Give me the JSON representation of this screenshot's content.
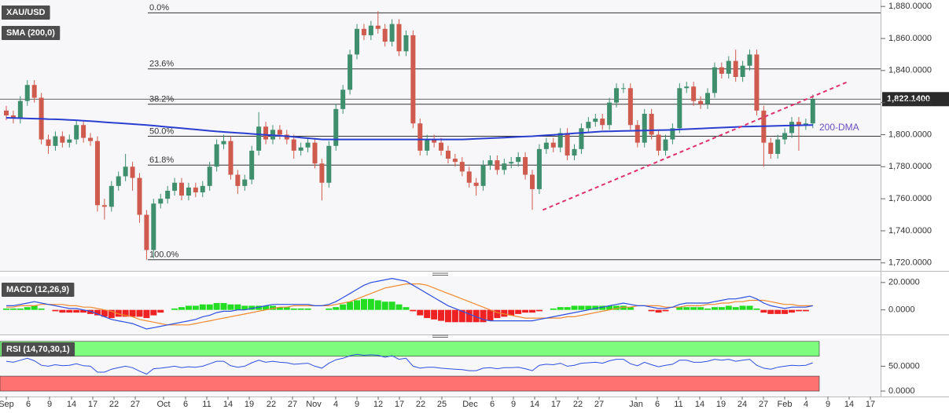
{
  "chart_data": [
    {
      "type": "candlestick",
      "title": "XAU/USD",
      "subtitle": "SMA (200,0)",
      "up_color": "#3f8f6f",
      "down_color": "#cf5a4e",
      "sma_color": "#2a3fd0",
      "ylim": [
        1715,
        1884
      ],
      "yticks": [
        {
          "value": 1880,
          "label": "1,880.0000"
        },
        {
          "value": 1860,
          "label": "1,860.0000"
        },
        {
          "value": 1840,
          "label": "1,840.0000"
        },
        {
          "value": 1820,
          "label": "1,820.0000"
        },
        {
          "value": 1800,
          "label": "1,800.0000"
        },
        {
          "value": 1780,
          "label": "1,780.0000"
        },
        {
          "value": 1760,
          "label": "1,760.0000"
        },
        {
          "value": 1740,
          "label": "1,740.0000"
        },
        {
          "value": 1720,
          "label": "1,720.0000"
        }
      ],
      "open": [
        1815,
        1812,
        1810,
        1821,
        1831,
        1823,
        1797,
        1793,
        1799,
        1795,
        1797,
        1806,
        1798,
        1796,
        1756,
        1755,
        1768,
        1774,
        1780,
        1773,
        1750,
        1728,
        1757,
        1760,
        1765,
        1770,
        1762,
        1767,
        1764,
        1768,
        1780,
        1794,
        1796,
        1775,
        1768,
        1772,
        1790,
        1805,
        1797,
        1803,
        1800,
        1797,
        1790,
        1792,
        1795,
        1782,
        1770,
        1793,
        1816,
        1828,
        1850,
        1866,
        1862,
        1868,
        1866,
        1858,
        1869,
        1852,
        1862,
        1807,
        1790,
        1797,
        1795,
        1790,
        1785,
        1783,
        1777,
        1770,
        1768,
        1781,
        1784,
        1778,
        1782,
        1783,
        1786,
        1775,
        1766,
        1791,
        1795,
        1792,
        1801,
        1787,
        1791,
        1804,
        1808,
        1810,
        1806,
        1820,
        1829,
        1829,
        1806,
        1795,
        1813,
        1800,
        1790,
        1797,
        1804,
        1829,
        1830,
        1821,
        1819,
        1826,
        1842,
        1838,
        1846,
        1836,
        1843,
        1850,
        1815,
        1795,
        1788,
        1797,
        1801,
        1808,
        1806,
        1807
      ],
      "high": [
        1818,
        1815,
        1824,
        1834,
        1834,
        1826,
        1800,
        1802,
        1802,
        1800,
        1809,
        1809,
        1801,
        1799,
        1760,
        1771,
        1777,
        1788,
        1783,
        1776,
        1753,
        1760,
        1763,
        1768,
        1773,
        1773,
        1770,
        1770,
        1771,
        1783,
        1797,
        1800,
        1799,
        1778,
        1775,
        1793,
        1814,
        1808,
        1806,
        1806,
        1803,
        1800,
        1795,
        1798,
        1798,
        1785,
        1796,
        1819,
        1831,
        1853,
        1869,
        1869,
        1871,
        1877,
        1869,
        1872,
        1872,
        1865,
        1865,
        1810,
        1800,
        1800,
        1798,
        1793,
        1788,
        1786,
        1780,
        1773,
        1784,
        1787,
        1787,
        1785,
        1786,
        1789,
        1789,
        1778,
        1794,
        1798,
        1798,
        1804,
        1804,
        1794,
        1807,
        1811,
        1813,
        1813,
        1823,
        1832,
        1832,
        1832,
        1809,
        1816,
        1816,
        1803,
        1800,
        1807,
        1832,
        1833,
        1833,
        1824,
        1829,
        1845,
        1845,
        1849,
        1853,
        1846,
        1853,
        1853,
        1818,
        1798,
        1800,
        1804,
        1811,
        1811,
        1810,
        1825
      ],
      "low": [
        1809,
        1807,
        1807,
        1818,
        1820,
        1794,
        1788,
        1790,
        1792,
        1792,
        1794,
        1795,
        1793,
        1752,
        1747,
        1752,
        1765,
        1771,
        1765,
        1745,
        1722,
        1723,
        1754,
        1757,
        1762,
        1759,
        1759,
        1761,
        1761,
        1765,
        1777,
        1791,
        1772,
        1763,
        1765,
        1769,
        1787,
        1794,
        1794,
        1797,
        1794,
        1785,
        1787,
        1789,
        1779,
        1759,
        1767,
        1790,
        1813,
        1825,
        1847,
        1859,
        1859,
        1863,
        1855,
        1855,
        1849,
        1849,
        1804,
        1787,
        1787,
        1792,
        1787,
        1782,
        1780,
        1774,
        1767,
        1762,
        1765,
        1778,
        1775,
        1775,
        1779,
        1780,
        1772,
        1753,
        1763,
        1788,
        1789,
        1789,
        1784,
        1784,
        1788,
        1801,
        1805,
        1803,
        1803,
        1817,
        1826,
        1803,
        1792,
        1792,
        1797,
        1787,
        1787,
        1794,
        1801,
        1826,
        1818,
        1816,
        1816,
        1823,
        1835,
        1835,
        1833,
        1833,
        1840,
        1812,
        1780,
        1785,
        1785,
        1794,
        1798,
        1790,
        1803,
        1804
      ],
      "close": [
        1812,
        1810,
        1821,
        1831,
        1823,
        1797,
        1793,
        1799,
        1795,
        1797,
        1806,
        1798,
        1796,
        1756,
        1755,
        1768,
        1774,
        1780,
        1773,
        1750,
        1728,
        1757,
        1760,
        1765,
        1770,
        1762,
        1767,
        1764,
        1768,
        1780,
        1794,
        1796,
        1775,
        1768,
        1772,
        1790,
        1805,
        1797,
        1803,
        1800,
        1797,
        1790,
        1792,
        1795,
        1782,
        1770,
        1793,
        1816,
        1828,
        1850,
        1866,
        1862,
        1868,
        1866,
        1858,
        1869,
        1852,
        1862,
        1807,
        1790,
        1797,
        1795,
        1790,
        1785,
        1783,
        1777,
        1770,
        1768,
        1781,
        1784,
        1778,
        1782,
        1783,
        1786,
        1775,
        1766,
        1791,
        1795,
        1792,
        1801,
        1787,
        1791,
        1804,
        1808,
        1810,
        1806,
        1820,
        1829,
        1829,
        1806,
        1795,
        1813,
        1800,
        1790,
        1797,
        1804,
        1829,
        1830,
        1821,
        1819,
        1826,
        1842,
        1838,
        1846,
        1836,
        1843,
        1850,
        1815,
        1795,
        1788,
        1797,
        1801,
        1808,
        1806,
        1807,
        1822
      ],
      "sma": [
        1810.5,
        1810.4,
        1810.3,
        1810.1,
        1810,
        1809.9,
        1809.7,
        1809.6,
        1809.4,
        1809.2,
        1809,
        1808.7,
        1808.4,
        1808.1,
        1807.8,
        1807.5,
        1807.2,
        1806.9,
        1806.6,
        1806.3,
        1806,
        1805.6,
        1805.2,
        1804.8,
        1804.4,
        1804,
        1803.6,
        1803.2,
        1802.8,
        1802.4,
        1802,
        1801.7,
        1801.4,
        1801.1,
        1800.8,
        1800.5,
        1800.2,
        1799.9,
        1799.6,
        1799.3,
        1799,
        1798.6,
        1798.2,
        1797.8,
        1797.4,
        1797,
        1797,
        1797,
        1797,
        1797,
        1797,
        1797,
        1797,
        1797,
        1797,
        1797,
        1797,
        1797,
        1797,
        1797,
        1797,
        1797,
        1797,
        1797,
        1797,
        1797,
        1797.2,
        1797.4,
        1797.6,
        1797.8,
        1798,
        1798.2,
        1798.4,
        1798.6,
        1798.8,
        1799,
        1799.3,
        1799.6,
        1799.9,
        1800.2,
        1800.5,
        1800.8,
        1801.1,
        1801.4,
        1801.7,
        1802,
        1802.1,
        1802.2,
        1802.3,
        1802.4,
        1802.5,
        1802.6,
        1802.7,
        1802.8,
        1802.9,
        1803,
        1803.2,
        1803.4,
        1803.6,
        1803.8,
        1804,
        1804.2,
        1804.4,
        1804.6,
        1804.8,
        1805,
        1805.1,
        1805.2,
        1805.3,
        1805.4,
        1805.5,
        1805.6,
        1805.7,
        1805.8,
        1805.9,
        1806
      ],
      "sma_label": "200-DMA",
      "sma_label_color": "#6a4fc0",
      "fib_levels": [
        {
          "value": 1876,
          "label": "0.0%"
        },
        {
          "value": 1841,
          "label": "23.6%"
        },
        {
          "value": 1819,
          "label": "38.2%"
        },
        {
          "value": 1799,
          "label": "50.0%"
        },
        {
          "value": 1781,
          "label": "61.8%"
        },
        {
          "value": 1722,
          "label": "100.0%"
        }
      ],
      "trendline": [
        1753,
        1833
      ],
      "trendline_color": "#e0306a",
      "last_price": {
        "value": 1822.14,
        "label": "1,822.1400"
      }
    },
    {
      "type": "macd",
      "title": "MACD (12,26,9)",
      "macd_color": "#2e4fe0",
      "signal_color": "#f08a30",
      "up_color": "#22dd22",
      "down_color": "#ee2222",
      "ylim": [
        -18,
        24.5
      ],
      "yticks": [
        {
          "value": 20,
          "label": "20.0000"
        },
        {
          "value": 0,
          "label": "0.0000"
        }
      ],
      "macd": [
        3,
        3,
        4,
        5,
        6,
        5,
        4,
        3,
        2,
        1,
        1,
        0,
        -1,
        -3,
        -5,
        -7,
        -8,
        -9,
        -10,
        -12,
        -14,
        -13,
        -12,
        -11,
        -10,
        -9,
        -8,
        -7,
        -5,
        -4,
        -2,
        -1,
        -1,
        0,
        0,
        1,
        2,
        3,
        4,
        4,
        4,
        4,
        4,
        4,
        3,
        3,
        4,
        6,
        9,
        12,
        15,
        18,
        20,
        21,
        22,
        23,
        22,
        21,
        18,
        15,
        12,
        9,
        6,
        3,
        1,
        -1,
        -3,
        -5,
        -7,
        -8,
        -8,
        -8,
        -8,
        -8,
        -8,
        -8,
        -7,
        -6,
        -5,
        -4,
        -3,
        -2,
        -1,
        0,
        1,
        2,
        3,
        4,
        5,
        4,
        3,
        3,
        2,
        1,
        1,
        2,
        4,
        5,
        5,
        5,
        5,
        6,
        7,
        8,
        8,
        9,
        10,
        8,
        5,
        3,
        2,
        1,
        2,
        2,
        2,
        3
      ],
      "signal": [
        2,
        2,
        3,
        3,
        3,
        4,
        4,
        4,
        4,
        3,
        3,
        2,
        2,
        1,
        0,
        -1,
        -3,
        -4,
        -5,
        -7,
        -8,
        -9,
        -10,
        -11,
        -11,
        -11,
        -11,
        -10,
        -9,
        -8,
        -7,
        -6,
        -5,
        -4,
        -3,
        -2,
        -1,
        0,
        1,
        2,
        2,
        3,
        3,
        3,
        3,
        3,
        3,
        4,
        5,
        6,
        8,
        10,
        12,
        14,
        16,
        17,
        18,
        19,
        19,
        19,
        18,
        16,
        14,
        12,
        10,
        8,
        6,
        4,
        2,
        0,
        -2,
        -3,
        -4,
        -5,
        -6,
        -6,
        -6,
        -6,
        -6,
        -6,
        -5,
        -5,
        -4,
        -3,
        -2,
        -1,
        0,
        1,
        2,
        2,
        3,
        3,
        3,
        3,
        2,
        2,
        2,
        3,
        3,
        3,
        4,
        4,
        5,
        5,
        6,
        6,
        7,
        7,
        7,
        6,
        5,
        4,
        4,
        3,
        3,
        3
      ],
      "histogram": [
        1,
        1,
        1,
        2,
        3,
        1,
        0,
        -1,
        -2,
        -2,
        -2,
        -2,
        -3,
        -4,
        -5,
        -6,
        -5,
        -5,
        -5,
        -5,
        -6,
        -4,
        -2,
        0,
        1,
        2,
        3,
        3,
        4,
        4,
        5,
        5,
        4,
        4,
        3,
        3,
        3,
        3,
        3,
        2,
        2,
        1,
        1,
        1,
        0,
        0,
        1,
        2,
        4,
        6,
        7,
        8,
        8,
        7,
        6,
        6,
        4,
        2,
        -1,
        -4,
        -6,
        -7,
        -8,
        -9,
        -9,
        -9,
        -9,
        -9,
        -9,
        -8,
        -6,
        -5,
        -4,
        -3,
        -2,
        -2,
        -1,
        0,
        1,
        2,
        2,
        3,
        3,
        3,
        3,
        3,
        3,
        3,
        3,
        2,
        0,
        0,
        -1,
        -2,
        -1,
        0,
        2,
        2,
        2,
        2,
        1,
        2,
        2,
        3,
        2,
        3,
        3,
        1,
        -2,
        -3,
        -3,
        -3,
        -2,
        -1,
        -1,
        0
      ]
    },
    {
      "type": "rsi",
      "title": "RSI (14,70,30,1)",
      "line_color": "#2e4fe0",
      "overbought": 70,
      "oversold": 30,
      "overbought_color": "#7dfc7d",
      "oversold_color": "#ff7272",
      "ylim": [
        -11,
        106
      ],
      "yticks": [
        {
          "value": 50,
          "label": "50.0000"
        },
        {
          "value": 0,
          "label": "0.0000"
        }
      ],
      "values": [
        60,
        58,
        62,
        66,
        61,
        52,
        50,
        53,
        51,
        52,
        55,
        51,
        50,
        38,
        38,
        44,
        47,
        50,
        47,
        40,
        34,
        45,
        46,
        48,
        50,
        47,
        49,
        48,
        50,
        55,
        60,
        60,
        51,
        48,
        50,
        57,
        62,
        58,
        60,
        58,
        57,
        54,
        55,
        56,
        50,
        46,
        56,
        63,
        66,
        71,
        74,
        72,
        73,
        72,
        68,
        71,
        64,
        66,
        50,
        46,
        48,
        48,
        46,
        45,
        44,
        43,
        41,
        41,
        46,
        47,
        45,
        47,
        47,
        48,
        45,
        41,
        52,
        54,
        53,
        56,
        50,
        52,
        56,
        57,
        58,
        56,
        61,
        64,
        64,
        55,
        51,
        58,
        53,
        49,
        52,
        54,
        62,
        62,
        58,
        58,
        60,
        64,
        62,
        64,
        60,
        62,
        64,
        52,
        46,
        44,
        48,
        50,
        52,
        51,
        52,
        57
      ]
    }
  ],
  "x_axis_labels": [
    "Sep",
    "6",
    "9",
    "14",
    "17",
    "22",
    "27",
    "Oct",
    "6",
    "11",
    "14",
    "19",
    "22",
    "27",
    "Nov",
    "4",
    "9",
    "12",
    "17",
    "22",
    "25",
    "Dec",
    "6",
    "9",
    "14",
    "17",
    "22",
    "27",
    "Jan",
    "6",
    "11",
    "14",
    "19",
    "24",
    "27",
    "Feb",
    "4",
    "9",
    "14",
    "17"
  ]
}
